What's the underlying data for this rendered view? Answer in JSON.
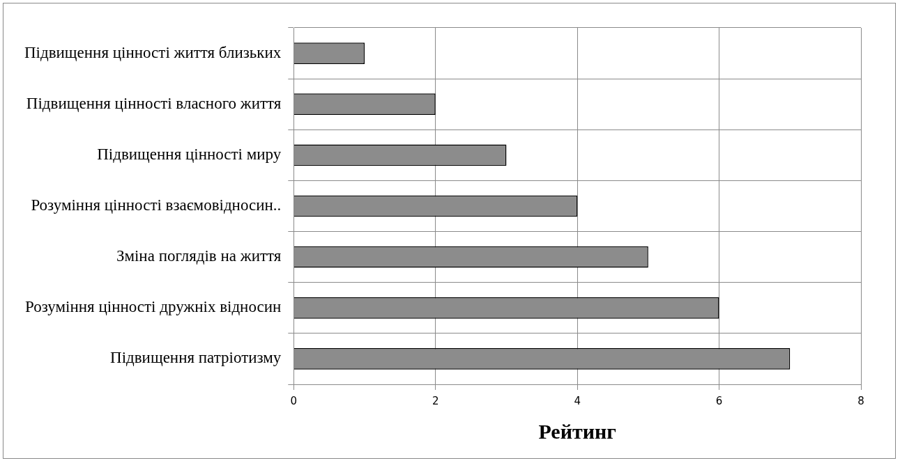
{
  "chart_data": {
    "type": "bar",
    "orientation": "horizontal",
    "xlabel": "Рейтинг",
    "categories": [
      "Підвищення цінності життя близьких",
      "Підвищення цінності власного життя",
      "Підвищення цінності миру",
      "Розуміння цінності взаємовідносин..",
      "Зміна поглядів на життя",
      "Розуміння цінності дружніх відносин",
      "Підвищення патріотизму"
    ],
    "values": [
      1,
      2,
      3,
      4,
      5,
      6,
      7
    ],
    "color": "#8c8c8c",
    "xlim": [
      0,
      8
    ],
    "xticks": [
      0,
      2,
      4,
      6,
      8
    ],
    "grid": true,
    "legend": false
  }
}
